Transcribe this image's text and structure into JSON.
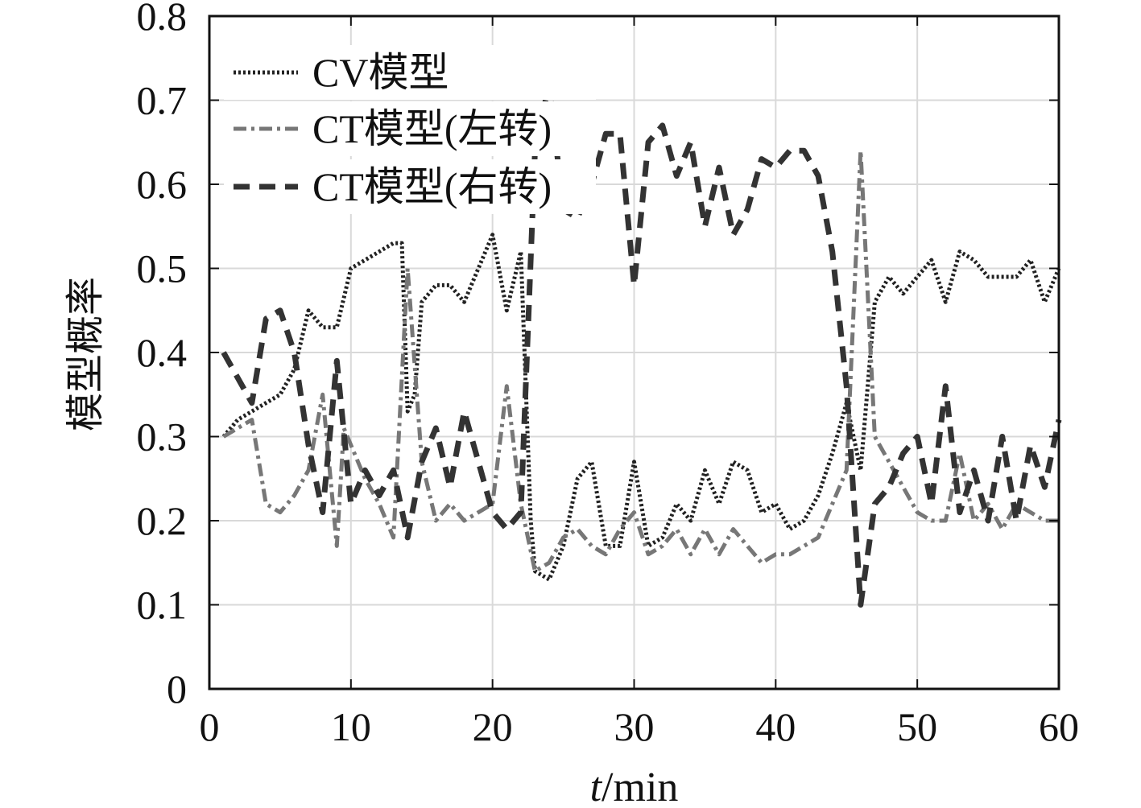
{
  "chart_data": {
    "type": "line",
    "title": "",
    "xlabel_italic": "t",
    "xlabel_unit": "/min",
    "ylabel": "模型概率",
    "xlim": [
      0,
      60
    ],
    "ylim": [
      0,
      0.8
    ],
    "x_ticks": [
      0,
      10,
      20,
      30,
      40,
      50,
      60
    ],
    "y_ticks": [
      0,
      0.1,
      0.2,
      0.3,
      0.4,
      0.5,
      0.6,
      0.7,
      0.8
    ],
    "x_tick_labels": [
      "0",
      "10",
      "20",
      "30",
      "40",
      "50",
      "60"
    ],
    "y_tick_labels": [
      "0",
      "0.1",
      "0.2",
      "0.3",
      "0.4",
      "0.5",
      "0.6",
      "0.7",
      "0.8"
    ],
    "grid": true,
    "legend_position": "top-left",
    "colors": {
      "axis": "#111111",
      "grid": "#d9d9d9",
      "cv": "#222222",
      "ct_left": "#777777",
      "ct_right": "#333333"
    },
    "series": [
      {
        "name": "CV模型",
        "style": "dotted",
        "x": [
          1,
          2,
          3,
          4,
          5,
          6,
          7,
          8,
          9,
          10,
          11,
          12,
          13,
          13.6,
          14,
          14.5,
          15,
          16,
          17,
          18,
          19,
          20,
          21,
          22,
          22.7,
          23,
          24,
          25,
          26,
          27,
          28,
          29,
          30,
          31,
          32,
          33,
          34,
          35,
          36,
          37,
          38,
          39,
          40,
          41,
          42,
          43,
          44,
          45,
          46,
          47,
          48,
          49,
          50,
          51,
          52,
          53,
          54,
          55,
          56,
          57,
          58,
          59,
          60
        ],
        "values": [
          0.3,
          0.32,
          0.33,
          0.34,
          0.35,
          0.38,
          0.45,
          0.43,
          0.43,
          0.5,
          0.51,
          0.52,
          0.53,
          0.53,
          0.33,
          0.35,
          0.46,
          0.48,
          0.48,
          0.46,
          0.5,
          0.54,
          0.45,
          0.52,
          0.2,
          0.14,
          0.13,
          0.17,
          0.25,
          0.27,
          0.17,
          0.17,
          0.27,
          0.17,
          0.18,
          0.22,
          0.2,
          0.26,
          0.22,
          0.27,
          0.26,
          0.21,
          0.22,
          0.19,
          0.2,
          0.23,
          0.28,
          0.34,
          0.26,
          0.46,
          0.49,
          0.47,
          0.49,
          0.51,
          0.46,
          0.52,
          0.51,
          0.49,
          0.49,
          0.49,
          0.51,
          0.46,
          0.5
        ]
      },
      {
        "name": "CT模型(左转)",
        "style": "dash-dot",
        "x": [
          1,
          2,
          3,
          4,
          5,
          6,
          7,
          8,
          9,
          9.5,
          10,
          11,
          12,
          13,
          14,
          15,
          16,
          17,
          18,
          19,
          20,
          21,
          22,
          23,
          24,
          25,
          26,
          27,
          28,
          29,
          30,
          31,
          32,
          33,
          34,
          35,
          36,
          37,
          38,
          39,
          40,
          41,
          42,
          43,
          44,
          45,
          46,
          47,
          48,
          49,
          50,
          51,
          52,
          53,
          54,
          55,
          56,
          57,
          58,
          59,
          60
        ],
        "values": [
          0.3,
          0.31,
          0.32,
          0.22,
          0.21,
          0.23,
          0.26,
          0.35,
          0.17,
          0.31,
          0.29,
          0.25,
          0.22,
          0.18,
          0.5,
          0.27,
          0.2,
          0.22,
          0.2,
          0.21,
          0.22,
          0.36,
          0.22,
          0.14,
          0.15,
          0.18,
          0.19,
          0.17,
          0.16,
          0.19,
          0.21,
          0.16,
          0.17,
          0.19,
          0.16,
          0.19,
          0.16,
          0.19,
          0.17,
          0.15,
          0.16,
          0.16,
          0.17,
          0.18,
          0.22,
          0.26,
          0.64,
          0.3,
          0.27,
          0.24,
          0.21,
          0.2,
          0.2,
          0.28,
          0.2,
          0.22,
          0.19,
          0.22,
          0.21,
          0.2,
          0.2
        ]
      },
      {
        "name": "CT模型(右转)",
        "style": "dashed",
        "x": [
          1,
          2,
          3,
          4,
          5,
          6,
          7,
          8,
          9,
          10,
          11,
          12,
          13,
          14,
          15,
          16,
          17,
          18,
          19,
          20,
          21,
          22,
          23,
          24,
          25,
          26,
          27,
          28,
          29,
          30,
          31,
          32,
          33,
          34,
          35,
          36,
          37,
          38,
          39,
          40,
          41,
          42,
          43,
          44,
          45,
          46,
          47,
          48,
          49,
          50,
          51,
          52,
          53,
          54,
          55,
          56,
          57,
          58,
          59,
          60
        ],
        "values": [
          0.4,
          0.37,
          0.34,
          0.44,
          0.45,
          0.4,
          0.29,
          0.21,
          0.39,
          0.22,
          0.26,
          0.23,
          0.26,
          0.18,
          0.27,
          0.31,
          0.24,
          0.33,
          0.27,
          0.21,
          0.19,
          0.21,
          0.64,
          0.72,
          0.57,
          0.56,
          0.6,
          0.66,
          0.66,
          0.48,
          0.65,
          0.67,
          0.61,
          0.65,
          0.55,
          0.62,
          0.54,
          0.57,
          0.63,
          0.62,
          0.64,
          0.64,
          0.61,
          0.52,
          0.36,
          0.1,
          0.22,
          0.24,
          0.28,
          0.3,
          0.22,
          0.36,
          0.21,
          0.26,
          0.2,
          0.3,
          0.2,
          0.29,
          0.24,
          0.32
        ]
      }
    ]
  }
}
